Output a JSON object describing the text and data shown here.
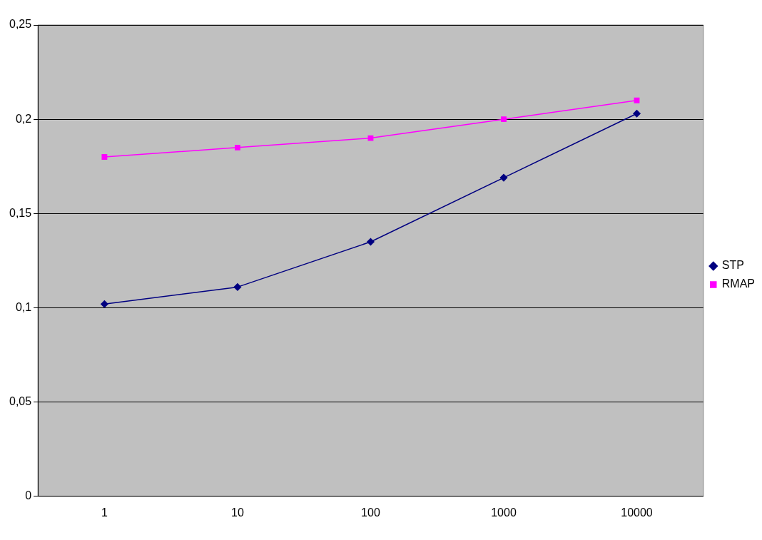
{
  "chart_data": {
    "type": "line",
    "categories": [
      "1",
      "10",
      "100",
      "1000",
      "10000"
    ],
    "series": [
      {
        "name": "STP",
        "color": "#000080",
        "marker": "diamond",
        "values": [
          0.102,
          0.111,
          0.135,
          0.169,
          0.203
        ]
      },
      {
        "name": "RMAP",
        "color": "#ff00ff",
        "marker": "square",
        "values": [
          0.18,
          0.185,
          0.19,
          0.2,
          0.21
        ]
      }
    ],
    "ylim": [
      0,
      0.25
    ],
    "yticks": [
      {
        "value": 0,
        "label": "0"
      },
      {
        "value": 0.05,
        "label": "0,05"
      },
      {
        "value": 0.1,
        "label": "0,1"
      },
      {
        "value": 0.15,
        "label": "0,15"
      },
      {
        "value": 0.2,
        "label": "0,2"
      },
      {
        "value": 0.25,
        "label": "0,25"
      }
    ],
    "grid": "y",
    "legend": "right"
  }
}
